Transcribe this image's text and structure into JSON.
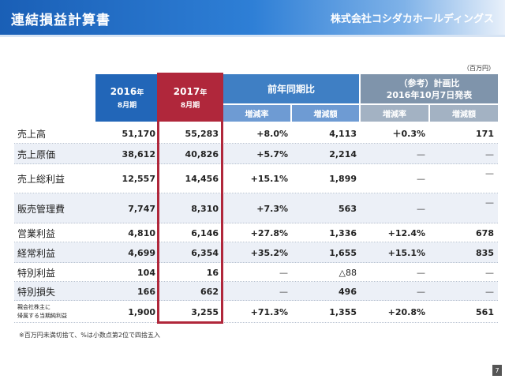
{
  "header": {
    "title": "連結損益計算書",
    "company": "株式会社コシダカホールディングス"
  },
  "unit": "（百万円）",
  "columns": {
    "y2016": {
      "year": "2016",
      "year_suffix": "年",
      "period": "8月期"
    },
    "y2017": {
      "year": "2017",
      "year_suffix": "年",
      "period": "8月期"
    },
    "prev_group": "前年同期比",
    "plan_group_line1": "（参考）計画比",
    "plan_group_line2": "2016年10月7日発表",
    "sub": [
      "増減率",
      "増減額",
      "増減率",
      "増減額"
    ]
  },
  "rows": [
    {
      "label": "売上高",
      "v2016": "51,170",
      "v2017": "55,283",
      "yoy_rate": "+8.0%",
      "yoy_amt": "4,113",
      "plan_rate": "＋0.3%",
      "plan_amt": "171"
    },
    {
      "label": "売上原価",
      "v2016": "38,612",
      "v2017": "40,826",
      "yoy_rate": "+5.7%",
      "yoy_amt": "2,214",
      "plan_rate": "—",
      "plan_amt": "—"
    },
    {
      "label": "売上総利益",
      "v2016": "12,557",
      "v2017": "14,456",
      "yoy_rate": "+15.1%",
      "yoy_amt": "1,899",
      "plan_rate": "—",
      "plan_amt": "—"
    },
    {
      "label": "販売管理費",
      "v2016": "7,747",
      "v2017": "8,310",
      "yoy_rate": "+7.3%",
      "yoy_amt": "563",
      "plan_rate": "—",
      "plan_amt": "—"
    },
    {
      "label": "営業利益",
      "v2016": "4,810",
      "v2017": "6,146",
      "yoy_rate": "+27.8%",
      "yoy_amt": "1,336",
      "plan_rate": "+12.4%",
      "plan_amt": "678"
    },
    {
      "label": "経常利益",
      "v2016": "4,699",
      "v2017": "6,354",
      "yoy_rate": "+35.2%",
      "yoy_amt": "1,655",
      "plan_rate": "+15.1%",
      "plan_amt": "835"
    },
    {
      "label": "特別利益",
      "v2016": "104",
      "v2017": "16",
      "yoy_rate": "—",
      "yoy_amt": "△88",
      "plan_rate": "—",
      "plan_amt": "—"
    },
    {
      "label": "特別損失",
      "v2016": "166",
      "v2017": "662",
      "yoy_rate": "—",
      "yoy_amt": "496",
      "plan_rate": "—",
      "plan_amt": "—"
    },
    {
      "label_line1": "親会社株主に",
      "label_line2": "帰属する当期純利益",
      "v2016": "1,900",
      "v2017": "3,255",
      "yoy_rate": "+71.3%",
      "yoy_amt": "1,355",
      "plan_rate": "+20.8%",
      "plan_amt": "561"
    }
  ],
  "footnote": "※百万円未満切捨て、%は小数点第2位で四捨五入",
  "page_number": "7",
  "colors": {
    "blue_header": "#2266b8",
    "red_highlight": "#b0273b",
    "plan_header": "#7f94ab"
  }
}
